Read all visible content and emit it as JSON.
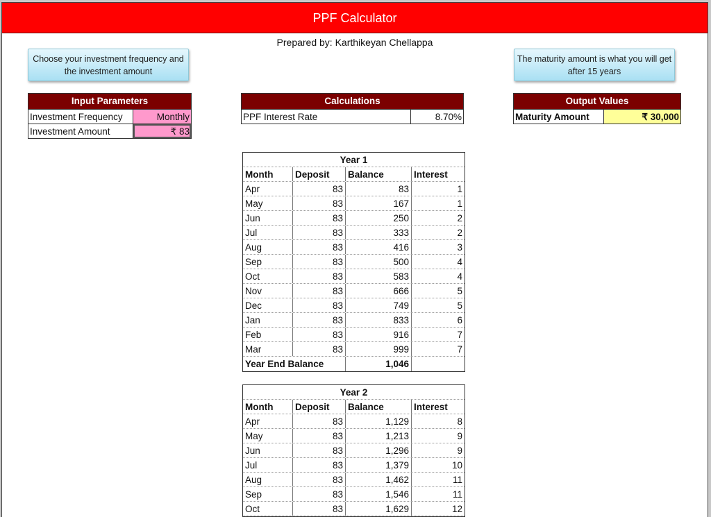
{
  "title": "PPF Calculator",
  "prepared_by": "Prepared by: Karthikeyan Chellappa",
  "callouts": {
    "left": "Choose your investment  frequency and the investment  amount",
    "right": "The maturity amount is what you will get after 15 years"
  },
  "input": {
    "heading": "Input Parameters",
    "rows": [
      {
        "label": "Investment Frequency",
        "value": "Monthly"
      },
      {
        "label": "Investment Amount",
        "value": "₹ 83"
      }
    ]
  },
  "calculations": {
    "heading": "Calculations",
    "rows": [
      {
        "label": "PPF Interest Rate",
        "value": "8.70%"
      }
    ]
  },
  "output": {
    "heading": "Output Values",
    "rows": [
      {
        "label": "Maturity Amount",
        "value": "₹ 30,000"
      }
    ]
  },
  "colors": {
    "header_red": "#ff0000",
    "panel_maroon": "#7b0000",
    "input_pink": "#ff99cc",
    "output_yellow": "#ffff99"
  },
  "columns": [
    "Month",
    "Deposit",
    "Balance",
    "Interest"
  ],
  "years": [
    {
      "title": "Year 1",
      "rows": [
        [
          "Apr",
          "83",
          "83",
          "1"
        ],
        [
          "May",
          "83",
          "167",
          "1"
        ],
        [
          "Jun",
          "83",
          "250",
          "2"
        ],
        [
          "Jul",
          "83",
          "333",
          "2"
        ],
        [
          "Aug",
          "83",
          "416",
          "3"
        ],
        [
          "Sep",
          "83",
          "500",
          "4"
        ],
        [
          "Oct",
          "83",
          "583",
          "4"
        ],
        [
          "Nov",
          "83",
          "666",
          "5"
        ],
        [
          "Dec",
          "83",
          "749",
          "5"
        ],
        [
          "Jan",
          "83",
          "833",
          "6"
        ],
        [
          "Feb",
          "83",
          "916",
          "7"
        ],
        [
          "Mar",
          "83",
          "999",
          "7"
        ]
      ],
      "year_end_label": "Year End Balance",
      "year_end_value": "1,046"
    },
    {
      "title": "Year 2",
      "rows": [
        [
          "Apr",
          "83",
          "1,129",
          "8"
        ],
        [
          "May",
          "83",
          "1,213",
          "9"
        ],
        [
          "Jun",
          "83",
          "1,296",
          "9"
        ],
        [
          "Jul",
          "83",
          "1,379",
          "10"
        ],
        [
          "Aug",
          "83",
          "1,462",
          "11"
        ],
        [
          "Sep",
          "83",
          "1,546",
          "11"
        ],
        [
          "Oct",
          "83",
          "1,629",
          "12"
        ]
      ]
    }
  ]
}
